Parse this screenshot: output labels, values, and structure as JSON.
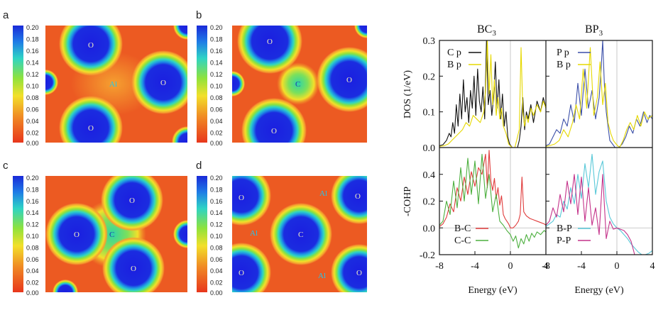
{
  "chart_data": [
    {
      "type": "heatmap",
      "panel": "a",
      "colorbar": {
        "min": 0.0,
        "max": 0.2,
        "ticks": [
          "0.20",
          "0.18",
          "0.16",
          "0.14",
          "0.12",
          "0.10",
          "0.08",
          "0.06",
          "0.04",
          "0.02",
          "0.00"
        ]
      },
      "atoms": [
        {
          "label": "O"
        },
        {
          "label": "Al"
        },
        {
          "label": "O"
        },
        {
          "label": "O"
        }
      ]
    },
    {
      "type": "heatmap",
      "panel": "b",
      "colorbar": {
        "min": 0.0,
        "max": 0.2,
        "ticks": [
          "0.20",
          "0.18",
          "0.16",
          "0.14",
          "0.12",
          "0.10",
          "0.08",
          "0.06",
          "0.04",
          "0.02",
          "0.00"
        ]
      },
      "atoms": [
        {
          "label": "O"
        },
        {
          "label": "C"
        },
        {
          "label": "O"
        },
        {
          "label": "O"
        }
      ]
    },
    {
      "type": "heatmap",
      "panel": "c",
      "colorbar": {
        "min": 0.0,
        "max": 0.2,
        "ticks": [
          "0.20",
          "0.18",
          "0.16",
          "0.14",
          "0.12",
          "0.10",
          "0.08",
          "0.06",
          "0.04",
          "0.02",
          "0.00"
        ]
      },
      "atoms": [
        {
          "label": "O"
        },
        {
          "label": "O"
        },
        {
          "label": "C"
        },
        {
          "label": "O"
        }
      ]
    },
    {
      "type": "heatmap",
      "panel": "d",
      "colorbar": {
        "min": 0.0,
        "max": 0.2,
        "ticks": [
          "0.20",
          "0.18",
          "0.16",
          "0.14",
          "0.12",
          "0.10",
          "0.08",
          "0.06",
          "0.04",
          "0.02",
          "0.00"
        ]
      },
      "atoms": [
        {
          "label": "Al"
        },
        {
          "label": "O"
        },
        {
          "label": "O"
        },
        {
          "label": "Al"
        },
        {
          "label": "C"
        },
        {
          "label": "O"
        },
        {
          "label": "Al"
        },
        {
          "label": "O"
        }
      ]
    },
    {
      "type": "line",
      "title": "BC3",
      "quantity": "DOS (1/eV)",
      "xlim": [
        -8,
        4
      ],
      "ylim": [
        0,
        0.3
      ],
      "yticks": [
        "0.0",
        "0.1",
        "0.2",
        "0.3"
      ],
      "series": [
        {
          "name": "C p",
          "color": "#111111",
          "x": [
            -8,
            -7.6,
            -7.2,
            -6.9,
            -6.7,
            -6.5,
            -6.3,
            -6.1,
            -5.9,
            -5.7,
            -5.5,
            -5.3,
            -5.1,
            -4.9,
            -4.7,
            -4.5,
            -4.3,
            -4.1,
            -3.9,
            -3.7,
            -3.5,
            -3.3,
            -3.1,
            -2.9,
            -2.7,
            -2.5,
            -2.3,
            -2.1,
            -1.9,
            -1.7,
            -1.5,
            -1.3,
            -1.1,
            -0.9,
            -0.7,
            -0.5,
            -0.3,
            -0.1,
            0.2,
            0.5,
            0.8,
            1.0,
            1.2,
            1.4,
            1.6,
            1.8,
            2.0,
            2.3,
            2.6,
            3.0,
            3.4,
            3.7,
            4
          ],
          "y": [
            0.005,
            0.008,
            0.02,
            0.04,
            0.03,
            0.07,
            0.04,
            0.12,
            0.06,
            0.15,
            0.08,
            0.19,
            0.1,
            0.14,
            0.07,
            0.16,
            0.11,
            0.2,
            0.09,
            0.22,
            0.13,
            0.1,
            0.17,
            0.08,
            0.3,
            0.12,
            0.16,
            0.09,
            0.14,
            0.24,
            0.11,
            0.19,
            0.08,
            0.15,
            0.06,
            0.1,
            0.03,
            0.01,
            0,
            0,
            0,
            0.02,
            0.06,
            0.14,
            0.05,
            0.1,
            0.08,
            0.12,
            0.07,
            0.13,
            0.1,
            0.14,
            0.11
          ]
        },
        {
          "name": "B p",
          "color": "#e6d800",
          "x": [
            -8,
            -7.5,
            -7.0,
            -6.6,
            -6.2,
            -5.8,
            -5.4,
            -5.0,
            -4.6,
            -4.2,
            -3.8,
            -3.4,
            -3.0,
            -2.8,
            -2.6,
            -2.4,
            -2.2,
            -2.0,
            -1.8,
            -1.6,
            -1.4,
            -1.2,
            -1.0,
            -0.8,
            -0.5,
            -0.2,
            0.2,
            0.5,
            0.8,
            1.0,
            1.2,
            1.4,
            1.6,
            1.8,
            2.0,
            2.3,
            2.6,
            3.0,
            3.4,
            3.7,
            4
          ],
          "y": [
            0.003,
            0.005,
            0.01,
            0.02,
            0.03,
            0.04,
            0.05,
            0.07,
            0.06,
            0.09,
            0.08,
            0.07,
            0.1,
            0.16,
            0.3,
            0.15,
            0.26,
            0.12,
            0.19,
            0.09,
            0.14,
            0.08,
            0.11,
            0.06,
            0.04,
            0.01,
            0,
            0,
            0.03,
            0.05,
            0.28,
            0.1,
            0.06,
            0.09,
            0.07,
            0.11,
            0.09,
            0.12,
            0.1,
            0.13,
            0.11
          ]
        }
      ]
    },
    {
      "type": "line",
      "title": "BP3",
      "quantity": "DOS (1/eV)",
      "xlim": [
        -8,
        4
      ],
      "ylim": [
        0,
        0.3
      ],
      "yticks": [
        "0.0",
        "0.1",
        "0.2",
        "0.3"
      ],
      "series": [
        {
          "name": "P p",
          "color": "#3b4fa8",
          "x": [
            -8,
            -7.6,
            -7.2,
            -6.8,
            -6.4,
            -6.0,
            -5.6,
            -5.2,
            -4.8,
            -4.4,
            -4.0,
            -3.6,
            -3.2,
            -2.8,
            -2.4,
            -2.0,
            -1.8,
            -1.6,
            -1.4,
            -1.2,
            -1.0,
            -0.8,
            -0.5,
            -0.2,
            0.2,
            0.6,
            1.0,
            1.4,
            1.8,
            2.2,
            2.6,
            3.0,
            3.4,
            3.7,
            4
          ],
          "y": [
            0.005,
            0.01,
            0.03,
            0.05,
            0.04,
            0.08,
            0.06,
            0.12,
            0.07,
            0.18,
            0.09,
            0.22,
            0.11,
            0.16,
            0.08,
            0.14,
            0.21,
            0.3,
            0.17,
            0.1,
            0.06,
            0.02,
            0.01,
            0,
            0,
            0.01,
            0.03,
            0.06,
            0.04,
            0.08,
            0.06,
            0.1,
            0.07,
            0.09,
            0.08
          ]
        },
        {
          "name": "B p",
          "color": "#e6d800",
          "x": [
            -8,
            -7.5,
            -7.0,
            -6.5,
            -6.0,
            -5.5,
            -5.0,
            -4.6,
            -4.2,
            -3.8,
            -3.4,
            -3.0,
            -2.6,
            -2.2,
            -1.9,
            -1.6,
            -1.3,
            -1.0,
            -0.7,
            -0.4,
            -0.1,
            0.3,
            0.7,
            1.1,
            1.5,
            1.9,
            2.3,
            2.7,
            3.1,
            3.5,
            4
          ],
          "y": [
            0.003,
            0.006,
            0.01,
            0.02,
            0.05,
            0.03,
            0.07,
            0.12,
            0.08,
            0.22,
            0.11,
            0.28,
            0.09,
            0.14,
            0.24,
            0.12,
            0.18,
            0.07,
            0.04,
            0.02,
            0.01,
            0,
            0.02,
            0.05,
            0.07,
            0.05,
            0.09,
            0.06,
            0.1,
            0.08,
            0.09
          ]
        }
      ]
    },
    {
      "type": "line",
      "title": "",
      "quantity": "-COHP",
      "xlim": [
        -8,
        4
      ],
      "ylim": [
        -0.2,
        0.6
      ],
      "yticks": [
        "-0.2",
        "0.0",
        "0.2",
        "0.4"
      ],
      "xticks": [
        "-8",
        "-4",
        "0",
        "4"
      ],
      "xlabel": "Energy (eV)",
      "series": [
        {
          "name": "B-C",
          "color": "#e03c3c",
          "x": [
            -8,
            -7.6,
            -7.2,
            -6.8,
            -6.4,
            -6.0,
            -5.6,
            -5.2,
            -4.8,
            -4.4,
            -4.0,
            -3.6,
            -3.2,
            -2.8,
            -2.6,
            -2.4,
            -2.2,
            -2.0,
            -1.8,
            -1.6,
            -1.4,
            -1.2,
            -1.0,
            -0.8,
            -0.6,
            -0.4,
            -0.2,
            0.0,
            0.3,
            0.6,
            0.9,
            1.1,
            1.3,
            1.5,
            1.8,
            2.2,
            2.6,
            3.0,
            3.4,
            3.8,
            4
          ],
          "y": [
            0.01,
            0.03,
            0.08,
            0.18,
            0.12,
            0.3,
            0.2,
            0.38,
            0.25,
            0.42,
            0.31,
            0.45,
            0.4,
            0.55,
            0.3,
            0.58,
            0.35,
            0.28,
            0.37,
            0.22,
            0.3,
            0.17,
            0.24,
            0.1,
            0.07,
            0.05,
            0.03,
            0.0,
            0.0,
            0.02,
            0.05,
            0.1,
            0.38,
            0.12,
            0.09,
            0.07,
            0.06,
            0.05,
            0.04,
            0.03,
            0.02
          ]
        },
        {
          "name": "C-C",
          "color": "#4caf3e",
          "x": [
            -8,
            -7.6,
            -7.2,
            -6.8,
            -6.4,
            -6.0,
            -5.6,
            -5.2,
            -4.8,
            -4.4,
            -4.0,
            -3.6,
            -3.2,
            -2.8,
            -2.4,
            -2.0,
            -1.6,
            -1.2,
            -0.8,
            -0.4,
            0.0,
            0.3,
            0.6,
            0.9,
            1.2,
            1.5,
            1.8,
            2.1,
            2.4,
            2.7,
            3.0,
            3.4,
            3.8,
            4
          ],
          "y": [
            0.02,
            0.05,
            0.2,
            0.1,
            0.35,
            0.15,
            0.45,
            0.2,
            0.52,
            0.25,
            0.5,
            0.18,
            0.55,
            0.22,
            0.4,
            0.12,
            0.25,
            0.05,
            0.02,
            -0.02,
            -0.05,
            -0.1,
            -0.06,
            -0.15,
            -0.08,
            -0.12,
            -0.05,
            -0.1,
            -0.04,
            -0.07,
            -0.03,
            -0.05,
            -0.02,
            -0.03
          ]
        }
      ]
    },
    {
      "type": "line",
      "title": "",
      "quantity": "-COHP",
      "xlim": [
        -8,
        4
      ],
      "ylim": [
        -0.2,
        0.6
      ],
      "yticks": [
        "-0.2",
        "0.0",
        "0.2",
        "0.4"
      ],
      "xticks": [
        "-8",
        "-4",
        "0",
        "4"
      ],
      "xlabel": "Energy (eV)",
      "series": [
        {
          "name": "B-P",
          "color": "#58c8d8",
          "x": [
            -8,
            -7.6,
            -7.2,
            -6.8,
            -6.4,
            -6.0,
            -5.6,
            -5.2,
            -4.8,
            -4.4,
            -4.0,
            -3.6,
            -3.2,
            -2.8,
            -2.4,
            -2.0,
            -1.6,
            -1.2,
            -0.8,
            -0.4,
            0.0,
            0.4,
            0.8,
            1.2,
            1.6,
            2.0,
            2.4,
            2.8,
            3.2,
            3.6,
            4
          ],
          "y": [
            0.01,
            0.03,
            0.05,
            0.1,
            0.08,
            0.2,
            0.14,
            0.3,
            0.18,
            0.4,
            0.22,
            0.48,
            0.3,
            0.55,
            0.25,
            0.42,
            0.5,
            0.2,
            0.08,
            0.03,
            0.0,
            -0.02,
            -0.05,
            -0.08,
            -0.12,
            -0.15,
            -0.18,
            -0.2,
            -0.2,
            -0.19,
            -0.17
          ]
        },
        {
          "name": "P-P",
          "color": "#c4328a",
          "x": [
            -8,
            -7.6,
            -7.2,
            -6.8,
            -6.4,
            -6.0,
            -5.6,
            -5.2,
            -4.8,
            -4.4,
            -4.0,
            -3.6,
            -3.2,
            -2.8,
            -2.4,
            -2.0,
            -1.6,
            -1.2,
            -0.8,
            -0.4,
            0.0,
            0.4,
            0.8,
            1.2,
            1.6,
            2.0,
            4
          ],
          "y": [
            0.02,
            0.05,
            0.15,
            0.08,
            0.25,
            0.12,
            0.35,
            0.18,
            0.4,
            0.1,
            0.38,
            0.05,
            0.3,
            0.02,
            0.15,
            -0.05,
            0.4,
            -0.08,
            0.05,
            -0.01,
            0.0,
            -0.01,
            -0.02,
            -0.05,
            -0.1,
            -0.2,
            -0.2
          ]
        }
      ]
    }
  ]
}
